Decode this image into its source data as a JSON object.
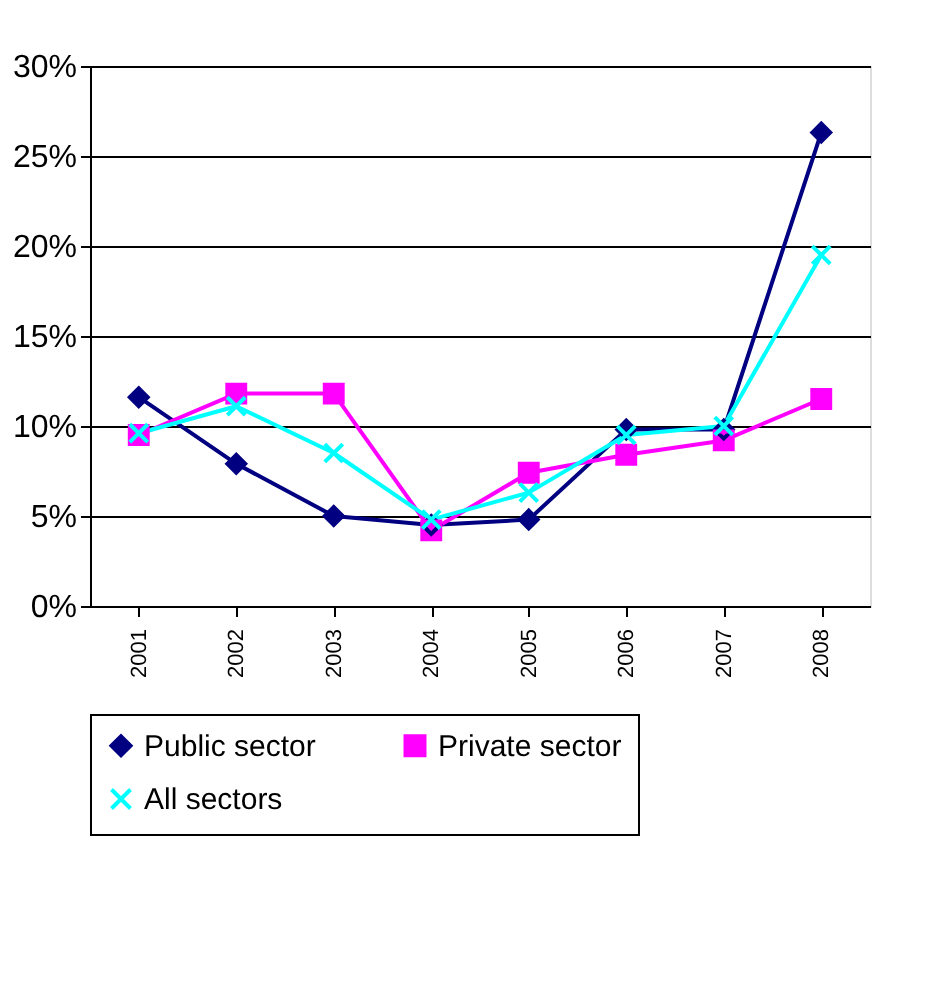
{
  "chart_data": {
    "type": "line",
    "categories": [
      "2001",
      "2002",
      "2003",
      "2004",
      "2005",
      "2006",
      "2007",
      "2008"
    ],
    "series": [
      {
        "name": "Public sector",
        "color": "#000080",
        "marker": "diamond",
        "values": [
          11.6,
          7.9,
          5.0,
          4.5,
          4.8,
          9.8,
          9.8,
          26.3
        ]
      },
      {
        "name": "Private sector",
        "color": "#ff00ff",
        "marker": "square",
        "values": [
          9.5,
          11.8,
          11.8,
          4.2,
          7.4,
          8.4,
          9.2,
          11.5
        ]
      },
      {
        "name": "All sectors",
        "color": "#00ffff",
        "marker": "cross",
        "values": [
          9.6,
          11.1,
          8.5,
          4.8,
          6.3,
          9.5,
          10.0,
          19.5
        ]
      }
    ],
    "ylim": [
      0,
      30
    ],
    "yticks": [
      {
        "value": 0,
        "label": "0%"
      },
      {
        "value": 5,
        "label": "5%"
      },
      {
        "value": 10,
        "label": "10%"
      },
      {
        "value": 15,
        "label": "15%"
      },
      {
        "value": 20,
        "label": "20%"
      },
      {
        "value": 25,
        "label": "25%"
      },
      {
        "value": 30,
        "label": "30%"
      }
    ],
    "grid": "y",
    "legend": "bottom",
    "line_style": "solid"
  }
}
